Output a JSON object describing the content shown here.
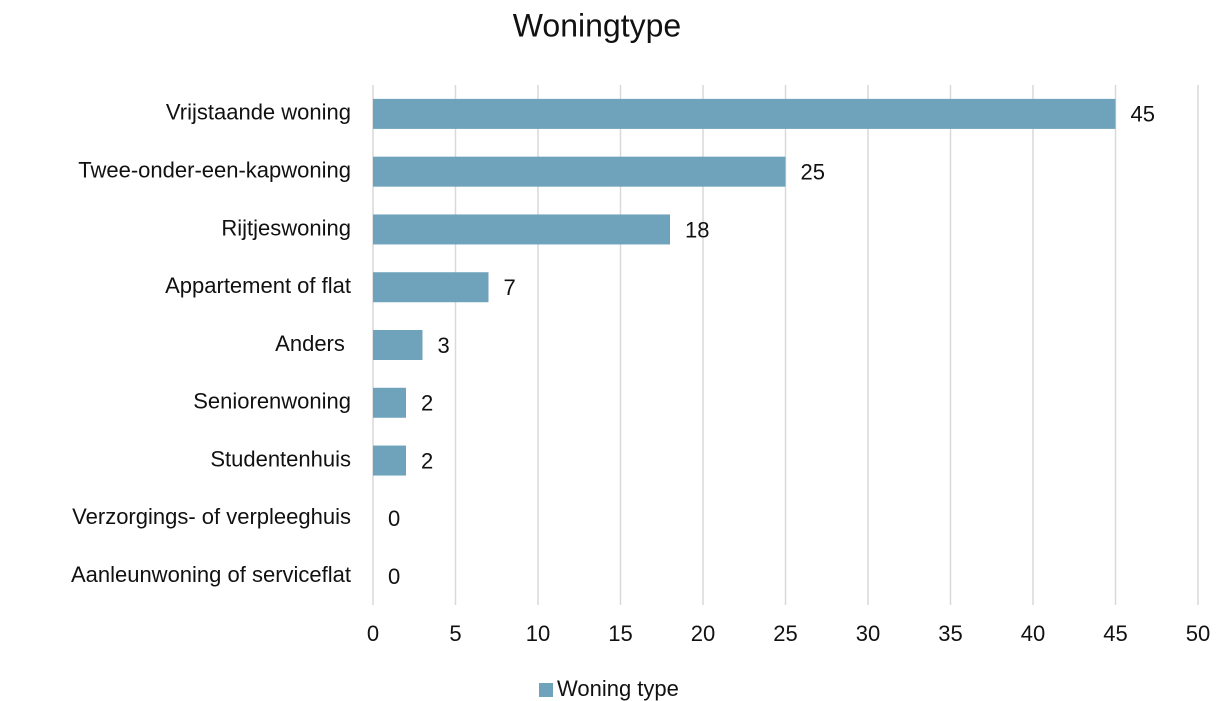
{
  "chart_data": {
    "type": "bar",
    "orientation": "horizontal",
    "title": "Woningtype",
    "categories": [
      "Vrijstaande woning",
      "Twee-onder-een-kapwoning",
      "Rijtjeswoning",
      "Appartement of flat",
      "Anders ",
      "Seniorenwoning",
      "Studentenhuis",
      "Verzorgings- of verpleeghuis",
      "Aanleunwoning of serviceflat"
    ],
    "series": [
      {
        "name": "Woning type",
        "color": "#6fa3bc",
        "values": [
          45,
          25,
          18,
          7,
          3,
          2,
          2,
          0,
          0
        ]
      }
    ],
    "xlim": [
      0,
      50
    ],
    "xticks": [
      0,
      5,
      10,
      15,
      20,
      25,
      30,
      35,
      40,
      45,
      50
    ],
    "grid": true,
    "legend": "bottom"
  }
}
